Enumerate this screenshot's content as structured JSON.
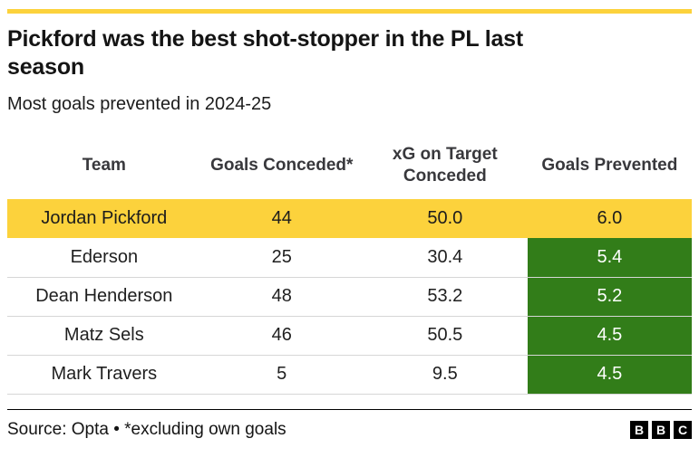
{
  "accent_color": "#FCD23C",
  "highlight_green": "#327D19",
  "header": {
    "title": "Pickford was the best shot-stopper in the PL last season",
    "subtitle": "Most goals prevented in 2024-25"
  },
  "table": {
    "columns": [
      "Team",
      "Goals Conceded*",
      "xG on Target Conceded",
      "Goals Prevented"
    ],
    "rows": [
      {
        "team": "Jordan Pickford",
        "goals_conceded": "44",
        "xg_on_target_conceded": "50.0",
        "goals_prevented": "6.0",
        "highlight": "yellow"
      },
      {
        "team": "Ederson",
        "goals_conceded": "25",
        "xg_on_target_conceded": "30.4",
        "goals_prevented": "5.4",
        "highlight": "green"
      },
      {
        "team": "Dean Henderson",
        "goals_conceded": "48",
        "xg_on_target_conceded": "53.2",
        "goals_prevented": "5.2",
        "highlight": "green"
      },
      {
        "team": "Matz Sels",
        "goals_conceded": "46",
        "xg_on_target_conceded": "50.5",
        "goals_prevented": "4.5",
        "highlight": "green"
      },
      {
        "team": "Mark Travers",
        "goals_conceded": "5",
        "xg_on_target_conceded": "9.5",
        "goals_prevented": "4.5",
        "highlight": "green"
      }
    ]
  },
  "footer": {
    "source": "Source: Opta • *excluding own goals",
    "logo_letters": {
      "b1": "B",
      "b2": "B",
      "b3": "C"
    }
  },
  "chart_data": {
    "type": "table",
    "title": "Pickford was the best shot-stopper in the PL last season",
    "subtitle": "Most goals prevented in 2024-25",
    "columns": [
      "Team",
      "Goals Conceded*",
      "xG on Target Conceded",
      "Goals Prevented"
    ],
    "rows": [
      [
        "Jordan Pickford",
        44,
        50.0,
        6.0
      ],
      [
        "Ederson",
        25,
        30.4,
        5.4
      ],
      [
        "Dean Henderson",
        48,
        53.2,
        5.2
      ],
      [
        "Matz Sels",
        46,
        50.5,
        4.5
      ],
      [
        "Mark Travers",
        5,
        9.5,
        4.5
      ]
    ],
    "highlighted_row": "Jordan Pickford",
    "source": "Source: Opta • *excluding own goals"
  }
}
